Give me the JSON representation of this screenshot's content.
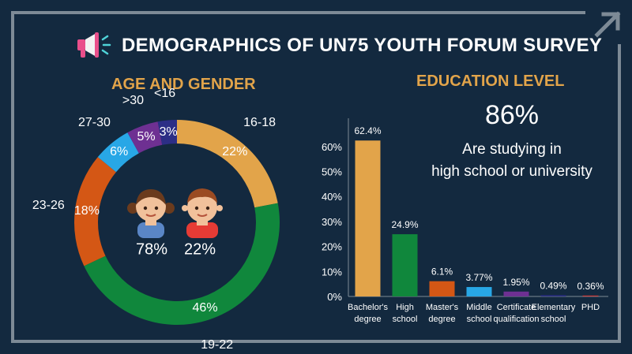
{
  "header": {
    "title": "DEMOGRAPHICS OF UN75 YOUTH FORUM SURVEY",
    "icon": "megaphone-icon"
  },
  "corner_icon": "arrow-up-right-icon",
  "age_section": {
    "title": "AGE AND GENDER",
    "gender": {
      "female_pct": "78%",
      "male_pct": "22%",
      "female_icon": "girl-icon",
      "male_icon": "boy-icon"
    }
  },
  "education_section": {
    "title": "EDUCATION LEVEL",
    "highlight_value": "86%",
    "highlight_line1": "Are studying in",
    "highlight_line2": "high school or university"
  },
  "chart_data": [
    {
      "type": "pie",
      "title": "AGE AND GENDER",
      "donut": true,
      "slices": [
        {
          "label": "16-18",
          "value": 22,
          "display": "22%",
          "color": "#e2a44a"
        },
        {
          "label": "19-22",
          "value": 46,
          "display": "46%",
          "color": "#10873c"
        },
        {
          "label": "23-26",
          "value": 18,
          "display": "18%",
          "color": "#d45715"
        },
        {
          "label": "27-30",
          "value": 6,
          "display": "6%",
          "color": "#28a7e6"
        },
        {
          "label": ">30",
          "value": 5,
          "display": "5%",
          "color": "#6e3092"
        },
        {
          "label": "<16",
          "value": 3,
          "display": "3%",
          "color": "#2c2e86"
        }
      ]
    },
    {
      "type": "bar",
      "title": "EDUCATION LEVEL",
      "categories": [
        [
          "Bachelor's",
          "degree"
        ],
        [
          "High",
          "school"
        ],
        [
          "Master's",
          "degree"
        ],
        [
          "Middle",
          "school"
        ],
        [
          "Certificate",
          "qualification"
        ],
        [
          "Elementary",
          "school"
        ],
        [
          "PHD"
        ]
      ],
      "values": [
        62.4,
        24.9,
        6.1,
        3.77,
        1.95,
        0.49,
        0.36
      ],
      "value_labels": [
        "62.4%",
        "24.9%",
        "6.1%",
        "3.77%",
        "1.95%",
        "0.49%",
        "0.36%"
      ],
      "colors": [
        "#e2a44a",
        "#10873c",
        "#d45715",
        "#28a7e6",
        "#6e3092",
        "#2c2e86",
        "#d23b38"
      ],
      "yticks": [
        0,
        10,
        20,
        30,
        40,
        50,
        60
      ],
      "ytick_labels": [
        "0%",
        "10%",
        "20%",
        "30%",
        "40%",
        "50%",
        "60%"
      ],
      "ylim": [
        0,
        65
      ]
    }
  ]
}
